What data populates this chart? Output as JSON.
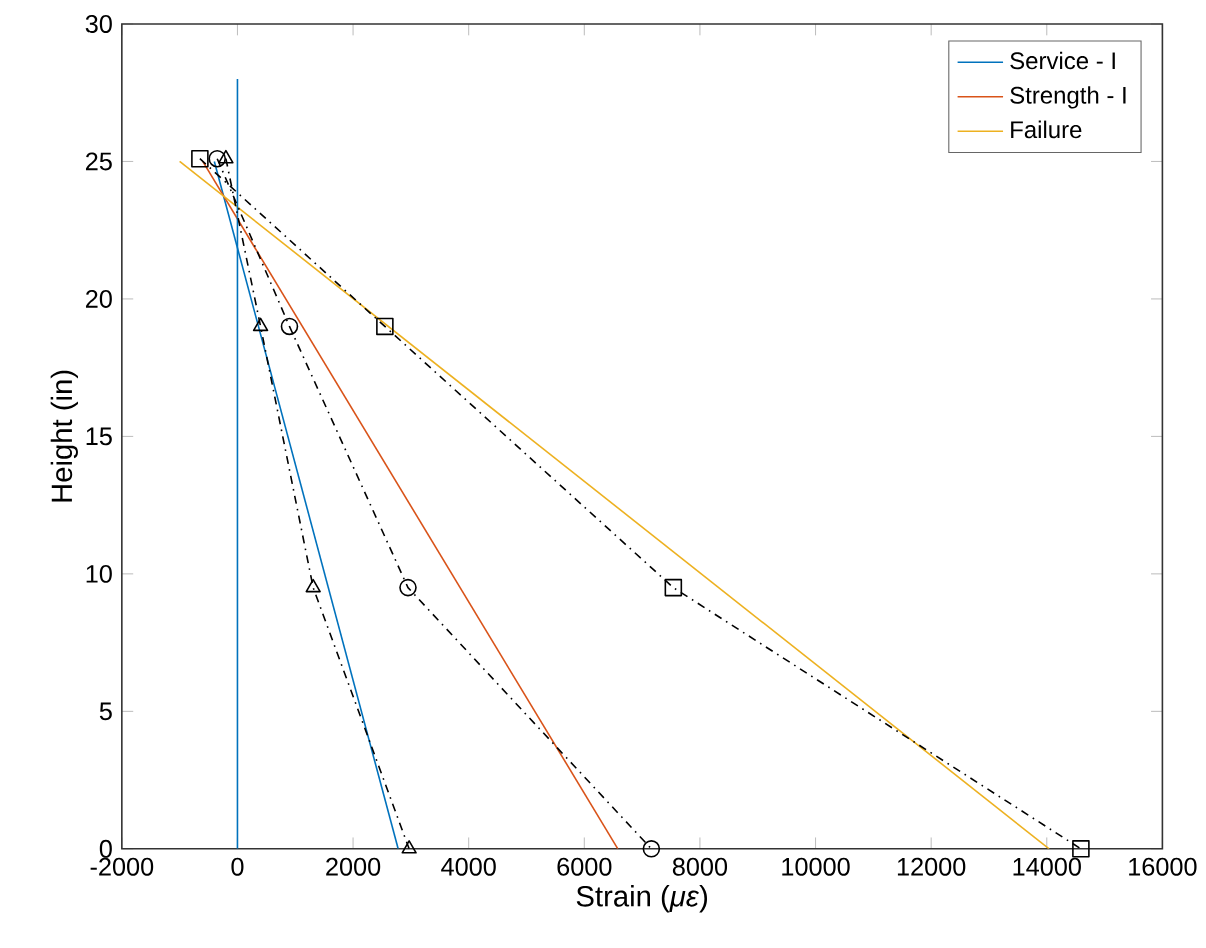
{
  "chart_data": {
    "type": "line",
    "xlabel": "Strain (*με*)",
    "ylabel": "Height (in)",
    "xlim": [
      -2000,
      16000
    ],
    "ylim": [
      0,
      30
    ],
    "xticks": [
      -2000,
      0,
      2000,
      4000,
      6000,
      8000,
      10000,
      12000,
      14000,
      16000
    ],
    "yticks": [
      0,
      5,
      10,
      15,
      20,
      25,
      30
    ],
    "legend": "top right",
    "grid": false,
    "series": [
      {
        "name": "Service - I",
        "color": "#0072bd",
        "x": [
          -400,
          2780
        ],
        "values": [
          25,
          0
        ],
        "line_style": "solid",
        "marker": "none"
      },
      {
        "name": "Strength - I",
        "color": "#d95319",
        "x": [
          -600,
          6580
        ],
        "values": [
          25,
          0
        ],
        "line_style": "solid",
        "marker": "none"
      },
      {
        "name": "Failure",
        "color": "#edb120",
        "x": [
          -1000,
          14040
        ],
        "values": [
          25,
          0
        ],
        "line_style": "solid",
        "marker": "none"
      },
      {
        "color": "#0072bd",
        "x": [
          0,
          0
        ],
        "values": [
          0,
          28
        ],
        "line_style": "solid",
        "marker": "none"
      },
      {
        "color": "#000000",
        "x": [
          -200,
          400,
          1310,
          2970
        ],
        "values": [
          25.1,
          19,
          9.5,
          0
        ],
        "line_style": "dashdot",
        "marker": "triangle"
      },
      {
        "color": "#000000",
        "x": [
          -350,
          900,
          2950,
          7160
        ],
        "values": [
          25.1,
          19,
          9.5,
          0
        ],
        "line_style": "dashdot",
        "marker": "circle"
      },
      {
        "color": "#000000",
        "x": [
          -650,
          2550,
          7540,
          14590
        ],
        "values": [
          25.1,
          19,
          9.5,
          0
        ],
        "line_style": "dashdot",
        "marker": "square"
      }
    ]
  }
}
